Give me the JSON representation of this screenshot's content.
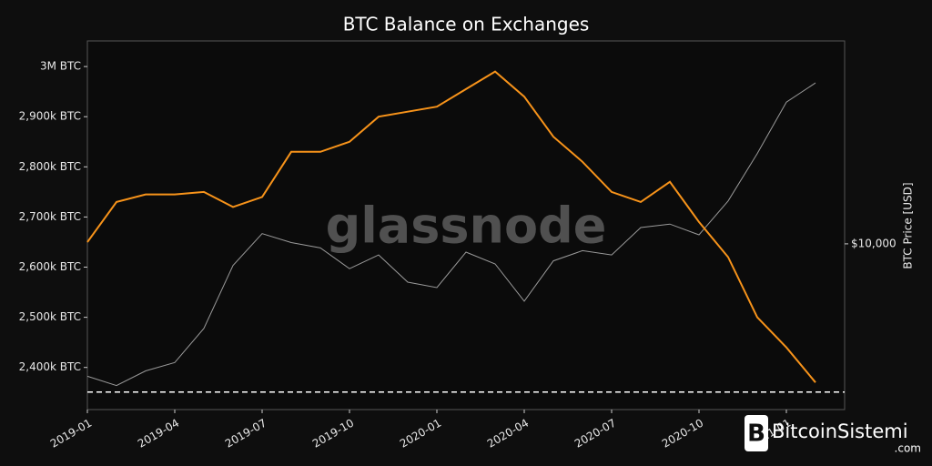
{
  "chart_data": {
    "type": "line",
    "title": "BTC Balance on Exchanges",
    "y2_label": "BTC Price [USD]",
    "watermark": "glassnode",
    "logo_text": "BitcoinSistemi",
    "logo_suffix": ".com",
    "x": [
      "2019-01",
      "2019-02",
      "2019-03",
      "2019-04",
      "2019-05",
      "2019-06",
      "2019-07",
      "2019-08",
      "2019-09",
      "2019-10",
      "2019-11",
      "2019-12",
      "2020-01",
      "2020-02",
      "2020-03",
      "2020-04",
      "2020-05",
      "2020-06",
      "2020-07",
      "2020-08",
      "2020-09",
      "2020-10",
      "2020-11",
      "2020-12",
      "2021-01",
      "2021-02"
    ],
    "xlim": [
      "2019-01",
      "2021-03"
    ],
    "xticks": [
      "2019-01",
      "2019-04",
      "2019-07",
      "2019-10",
      "2020-01",
      "2020-04",
      "2020-07",
      "2020-10",
      "2021-01"
    ],
    "series": [
      {
        "name": "Balance on Exchanges",
        "color": "#f7931a",
        "axis": "y",
        "values": [
          2650000,
          2730000,
          2745000,
          2745000,
          2750000,
          2720000,
          2740000,
          2830000,
          2830000,
          2850000,
          2900000,
          2910000,
          2920000,
          2955000,
          2990000,
          2940000,
          2860000,
          2810000,
          2750000,
          2730000,
          2770000,
          2690000,
          2620000,
          2500000,
          2440000,
          2370000
        ]
      },
      {
        "name": "BTC Price",
        "color": "#9a9a9a",
        "axis": "y2",
        "values": [
          3700,
          3450,
          3850,
          4100,
          5300,
          8500,
          10800,
          10100,
          9700,
          8300,
          9200,
          7500,
          7200,
          9400,
          8600,
          6500,
          8800,
          9500,
          9200,
          11300,
          11600,
          10700,
          13800,
          19700,
          29000,
          33500
        ]
      }
    ],
    "ylim": [
      2316000,
      3051000
    ],
    "yticks": [
      {
        "value": 2400000,
        "label": "2,400k BTC"
      },
      {
        "value": 2500000,
        "label": "2,500k BTC"
      },
      {
        "value": 2600000,
        "label": "2,600k BTC"
      },
      {
        "value": 2700000,
        "label": "2,700k BTC"
      },
      {
        "value": 2800000,
        "label": "2,800k BTC"
      },
      {
        "value": 2900000,
        "label": "2,900k BTC"
      },
      {
        "value": 3000000,
        "label": "3M BTC"
      }
    ],
    "y2lim": [
      2880,
      45900
    ],
    "y2ticks": [
      {
        "value": 10000,
        "label": "$10,000"
      }
    ],
    "y2_log": true,
    "reference_line": 2351000,
    "grid": false
  }
}
